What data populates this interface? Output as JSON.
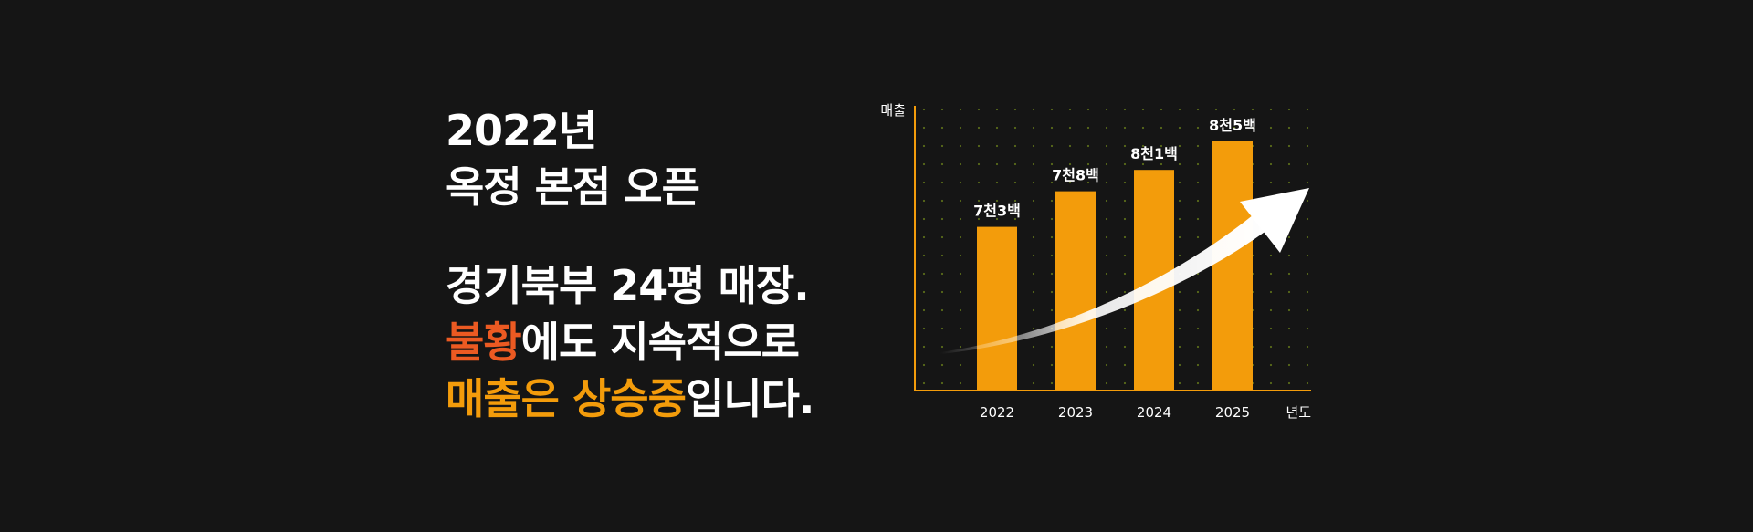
{
  "headline": {
    "line1": "2022년",
    "line2": "옥정 본점 오픈"
  },
  "body": {
    "line1": "경기북부 24평 매장.",
    "line2_highlight": "불황",
    "line2_rest": "에도 지속적으로",
    "line3_highlight": "매출은 상승중",
    "line3_rest": "입니다."
  },
  "colors": {
    "background": "#151515",
    "bar": "#f39c0b",
    "highlight_red": "#ec5a22",
    "highlight_orange": "#f39c0b",
    "grid_dot": "#5a6b1a",
    "arrow": "#ffffff"
  },
  "chart_data": {
    "type": "bar",
    "ylabel": "매출",
    "xlabel": "년도",
    "categories": [
      "2022",
      "2023",
      "2024",
      "2025"
    ],
    "values": [
      7300,
      7800,
      8100,
      8500
    ],
    "value_labels": [
      "7천3백",
      "7천8백",
      "8천1백",
      "8천5백"
    ],
    "ylim": [
      5000,
      9000
    ],
    "grid": "dotted",
    "trend_arrow": true
  }
}
